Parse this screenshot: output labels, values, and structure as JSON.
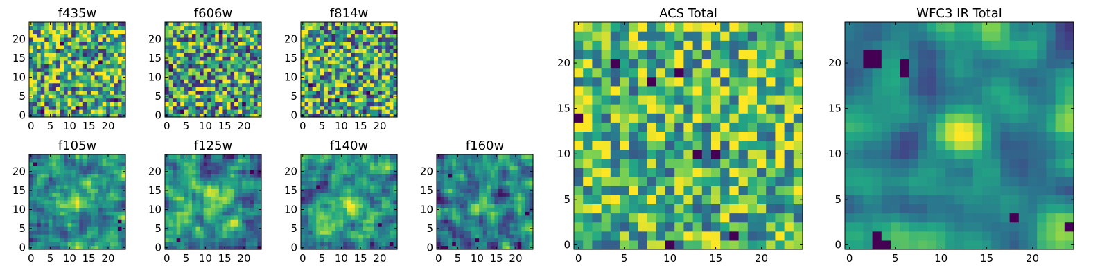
{
  "figure": {
    "colormap": [
      "#440154",
      "#414487",
      "#2a788e",
      "#22a884",
      "#7ad151",
      "#fde725"
    ]
  },
  "chart_data": [
    {
      "id": "f435w",
      "type": "heatmap",
      "title": "f435w",
      "size": 25,
      "xticks": [
        0,
        5,
        10,
        15,
        20
      ],
      "yticks": [
        0,
        5,
        10,
        15,
        20
      ],
      "seed": 11,
      "smooth": 0,
      "contrast": 1.0,
      "bias": 0.62,
      "blobs": [],
      "dark_spots": [
        [
          3,
          1
        ],
        [
          12,
          2
        ],
        [
          22,
          4
        ],
        [
          8,
          19
        ],
        [
          18,
          14
        ]
      ]
    },
    {
      "id": "f606w",
      "type": "heatmap",
      "title": "f606w",
      "size": 25,
      "xticks": [
        0,
        5,
        10,
        15,
        20
      ],
      "yticks": [
        0,
        5,
        10,
        15,
        20
      ],
      "seed": 23,
      "smooth": 0,
      "contrast": 1.0,
      "bias": 0.58,
      "blobs": [],
      "dark_spots": [
        [
          1,
          12
        ],
        [
          4,
          1
        ],
        [
          20,
          3
        ],
        [
          14,
          22
        ]
      ]
    },
    {
      "id": "f814w",
      "type": "heatmap",
      "title": "f814w",
      "size": 25,
      "xticks": [
        0,
        5,
        10,
        15,
        20
      ],
      "yticks": [
        0,
        5,
        10,
        15,
        20
      ],
      "seed": 37,
      "smooth": 0,
      "contrast": 1.0,
      "bias": 0.6,
      "blobs": [],
      "dark_spots": [
        [
          9,
          4
        ],
        [
          24,
          22
        ],
        [
          2,
          8
        ],
        [
          17,
          6
        ]
      ]
    },
    {
      "id": "f105w",
      "type": "heatmap",
      "title": "f105w",
      "size": 25,
      "xticks": [
        0,
        5,
        10,
        15,
        20
      ],
      "yticks": [
        0,
        5,
        10,
        15,
        20
      ],
      "seed": 41,
      "smooth": 1,
      "contrast": 1.5,
      "bias": 0.48,
      "blobs": [
        [
          12,
          13,
          4,
          0.35
        ]
      ],
      "dark_spots": [
        [
          23,
          5
        ],
        [
          23,
          7
        ],
        [
          1,
          22
        ]
      ]
    },
    {
      "id": "f125w",
      "type": "heatmap",
      "title": "f125w",
      "size": 25,
      "xticks": [
        0,
        5,
        10,
        15,
        20
      ],
      "yticks": [
        0,
        5,
        10,
        15,
        20
      ],
      "seed": 53,
      "smooth": 1,
      "contrast": 1.5,
      "bias": 0.5,
      "blobs": [
        [
          13,
          12,
          4,
          0.3
        ]
      ],
      "dark_spots": [
        [
          22,
          20
        ],
        [
          3,
          2
        ]
      ]
    },
    {
      "id": "f140w",
      "type": "heatmap",
      "title": "f140w",
      "size": 25,
      "xticks": [
        0,
        5,
        10,
        15,
        20
      ],
      "yticks": [
        0,
        5,
        10,
        15,
        20
      ],
      "seed": 67,
      "smooth": 1,
      "contrast": 1.5,
      "bias": 0.52,
      "blobs": [
        [
          11,
          11,
          4,
          0.3
        ]
      ],
      "dark_spots": [
        [
          23,
          1
        ],
        [
          20,
          6
        ],
        [
          4,
          16
        ]
      ]
    },
    {
      "id": "f160w",
      "type": "heatmap",
      "title": "f160w",
      "size": 25,
      "xticks": [
        0,
        5,
        10,
        15,
        20
      ],
      "yticks": [
        0,
        5,
        10,
        15,
        20
      ],
      "seed": 79,
      "smooth": 1,
      "contrast": 1.6,
      "bias": 0.45,
      "blobs": [
        [
          11,
          11,
          3,
          0.35
        ]
      ],
      "dark_spots": [
        [
          1,
          0
        ],
        [
          2,
          0
        ],
        [
          4,
          1
        ],
        [
          23,
          9
        ],
        [
          3,
          19
        ],
        [
          10,
          2
        ]
      ]
    },
    {
      "id": "acs-total",
      "type": "heatmap",
      "title": "ACS Total",
      "size": 25,
      "xticks": [
        0,
        5,
        10,
        15,
        20
      ],
      "yticks": [
        0,
        5,
        10,
        15,
        20
      ],
      "seed": 91,
      "smooth": 0,
      "contrast": 0.8,
      "bias": 0.68,
      "blobs": [],
      "dark_spots": [
        [
          13,
          10
        ],
        [
          15,
          10
        ],
        [
          4,
          20
        ],
        [
          11,
          19
        ],
        [
          10,
          0
        ],
        [
          17,
          1
        ],
        [
          0,
          14
        ],
        [
          8,
          18
        ]
      ]
    },
    {
      "id": "wfc3-ir-total",
      "type": "heatmap",
      "title": "WFC3 IR Total",
      "size": 25,
      "xticks": [
        0,
        5,
        10,
        15,
        20
      ],
      "yticks": [
        0,
        5,
        10,
        15,
        20
      ],
      "seed": 103,
      "smooth": 2,
      "contrast": 1.7,
      "bias": 0.42,
      "blobs": [
        [
          12,
          12,
          3,
          0.5
        ]
      ],
      "dark_spots": [
        [
          2,
          21
        ],
        [
          3,
          21
        ],
        [
          3,
          20
        ],
        [
          2,
          20
        ],
        [
          3,
          0
        ],
        [
          4,
          0
        ],
        [
          3,
          1
        ],
        [
          6,
          19
        ],
        [
          6,
          20
        ],
        [
          18,
          3
        ],
        [
          24,
          2
        ]
      ]
    }
  ]
}
